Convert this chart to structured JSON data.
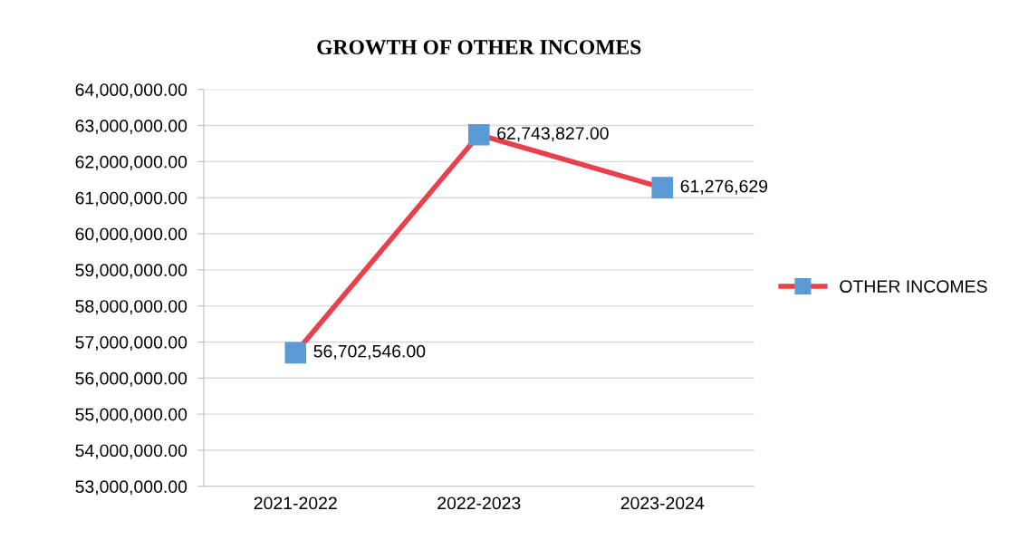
{
  "chart_data": {
    "type": "line",
    "title": "GROWTH OF OTHER INCOMES",
    "categories": [
      "2021-2022",
      "2022-2023",
      "2023-2024"
    ],
    "series": [
      {
        "name": "OTHER INCOMES",
        "color": "#e8404c",
        "colors": [
          "#5b9bd5",
          "#5b9bd5",
          "#5b9bd5"
        ],
        "values": [
          56702546,
          62743827,
          61276629
        ],
        "value_labels": [
          "56,702,546.00",
          "62,743,827.00",
          "61,276,629"
        ]
      }
    ],
    "ylim": [
      53000000,
      64000000
    ],
    "yticks": [
      {
        "value": 53000000,
        "label": "53,000,000.00"
      },
      {
        "value": 54000000,
        "label": "54,000,000.00"
      },
      {
        "value": 55000000,
        "label": "55,000,000.00"
      },
      {
        "value": 56000000,
        "label": "56,000,000.00"
      },
      {
        "value": 57000000,
        "label": "57,000,000.00"
      },
      {
        "value": 58000000,
        "label": "58,000,000.00"
      },
      {
        "value": 59000000,
        "label": "59,000,000.00"
      },
      {
        "value": 60000000,
        "label": "60,000,000.00"
      },
      {
        "value": 61000000,
        "label": "61,000,000.00"
      },
      {
        "value": 62000000,
        "label": "62,000,000.00"
      },
      {
        "value": 63000000,
        "label": "63,000,000.00"
      },
      {
        "value": 64000000,
        "label": "64,000,000.00"
      }
    ],
    "grid": "y",
    "legend": "right",
    "marker": "square",
    "line_style": "solid"
  }
}
